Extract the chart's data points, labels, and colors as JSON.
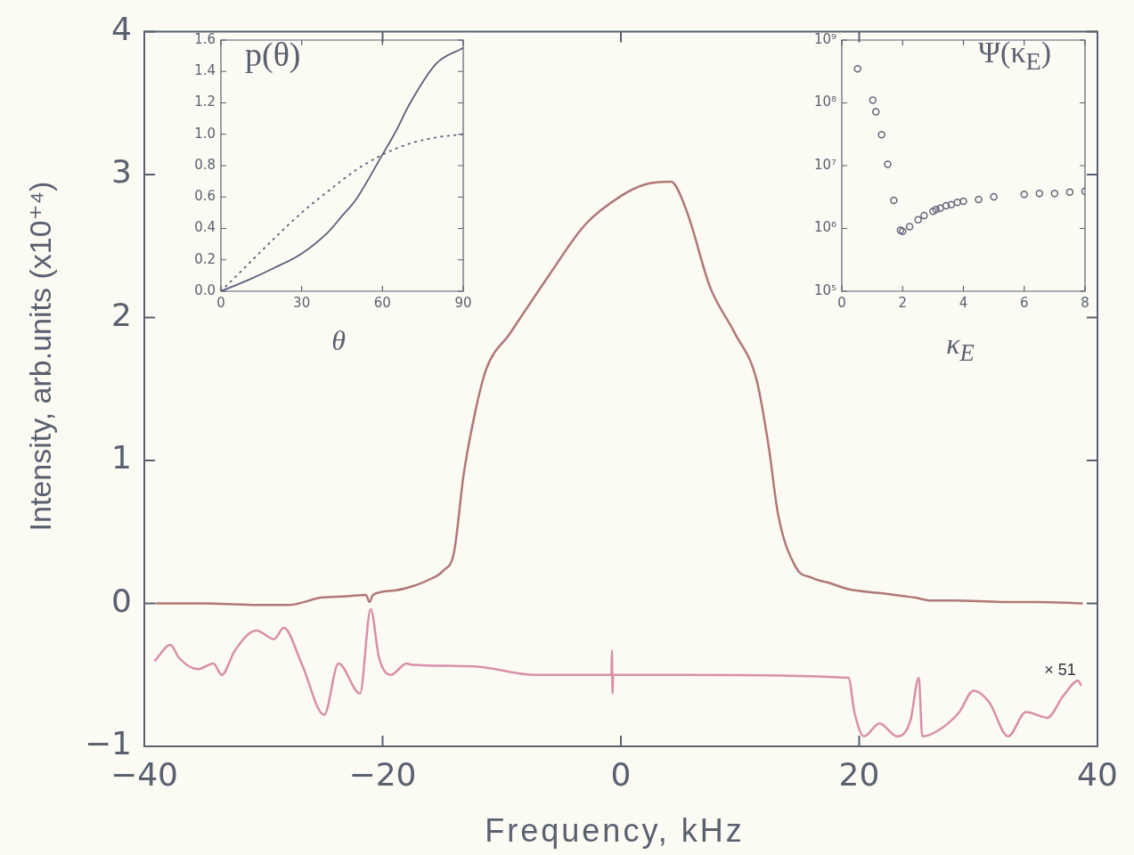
{
  "chart_data": [
    {
      "type": "line",
      "xlabel": "Frequency, kHz",
      "ylabel": "Intensity, arb.units   (x10⁺⁴)",
      "xlim": [
        -40,
        40
      ],
      "xticks": [
        {
          "value": -40,
          "label": "−40"
        },
        {
          "value": -20,
          "label": "−20"
        },
        0,
        20,
        40
      ],
      "ylim": [
        -1,
        4
      ],
      "yticks": [
        {
          "value": -1,
          "label": "−1"
        },
        0,
        1,
        2,
        3,
        4
      ],
      "series": [
        {
          "color": "#b07878",
          "x": [
            -39,
            -35,
            -31,
            -27.8,
            -25.2,
            -23,
            -21.4,
            -21.1,
            -20.8,
            -19,
            -17.5,
            -16,
            -14.9,
            -14,
            -13.2,
            -12.2,
            -11.3,
            -9.3,
            -6,
            -3,
            0,
            2,
            4.2,
            5.5,
            7.5,
            9.5,
            11.4,
            12.4,
            13.2,
            14.7,
            16,
            17.6,
            19.1,
            22,
            24.7,
            26,
            28,
            32,
            35,
            38.7
          ],
          "values": [
            0,
            0,
            -0.01,
            -0.01,
            0.04,
            0.05,
            0.06,
            0.01,
            0.06,
            0.09,
            0.12,
            0.17,
            0.23,
            0.36,
            0.9,
            1.35,
            1.64,
            1.89,
            2.3,
            2.65,
            2.85,
            2.93,
            2.95,
            2.75,
            2.21,
            1.9,
            1.56,
            1.1,
            0.62,
            0.25,
            0.18,
            0.14,
            0.1,
            0.07,
            0.04,
            0.02,
            0.02,
            0.01,
            0.01,
            0
          ]
        },
        {
          "color": "#d890a8",
          "x": [
            -39.1,
            -37.8,
            -37.1,
            -35.5,
            -34.2,
            -33.5,
            -32.4,
            -30.6,
            -29.1,
            -28.3,
            -26.8,
            -24.9,
            -23.7,
            -21.9,
            -21,
            -20.3,
            -19.3,
            -18,
            -17.5,
            -12.3,
            -7.2,
            -0.8,
            -0.75,
            -0.7,
            -0.65,
            5.2,
            19.1,
            19.6,
            20.4,
            21.7,
            23.2,
            24.3,
            25,
            25.3,
            26.8,
            28.4,
            29.6,
            30.9,
            32.5,
            34,
            35.8,
            37.1,
            38.4,
            38.6
          ],
          "values": [
            -0.4,
            -0.29,
            -0.38,
            -0.46,
            -0.42,
            -0.5,
            -0.33,
            -0.19,
            -0.25,
            -0.17,
            -0.42,
            -0.78,
            -0.42,
            -0.63,
            -0.04,
            -0.38,
            -0.5,
            -0.42,
            -0.43,
            -0.44,
            -0.5,
            -0.5,
            -0.33,
            -0.63,
            -0.5,
            -0.5,
            -0.52,
            -0.76,
            -0.93,
            -0.84,
            -0.93,
            -0.82,
            -0.52,
            -0.93,
            -0.88,
            -0.76,
            -0.61,
            -0.69,
            -0.93,
            -0.76,
            -0.8,
            -0.65,
            -0.54,
            -0.57
          ]
        }
      ],
      "annotations": [
        "× 51"
      ]
    },
    {
      "type": "line",
      "title": "p(θ)",
      "xlabel": "θ",
      "xlim": [
        0,
        90
      ],
      "xticks": [
        0,
        30,
        60,
        90
      ],
      "ylim": [
        0,
        1.6
      ],
      "yticks": [
        {
          "value": 0,
          "label": "0.0"
        },
        0.2,
        0.4,
        0.6,
        0.8,
        {
          "value": 1,
          "label": "1.0"
        },
        1.2,
        1.4,
        1.6
      ],
      "series": [
        {
          "color": "#5a6078",
          "line_style": "solid",
          "x": [
            0,
            10,
            20,
            30,
            40,
            45,
            50,
            60,
            65,
            70,
            80,
            90
          ],
          "values": [
            0,
            0.07,
            0.15,
            0.24,
            0.38,
            0.48,
            0.58,
            0.87,
            1.02,
            1.19,
            1.45,
            1.55
          ]
        },
        {
          "color": "#5a6078",
          "line_style": "dotted",
          "x": [
            0,
            10,
            20,
            30,
            40,
            50,
            60,
            70,
            80,
            90
          ],
          "values": [
            0,
            0.17,
            0.34,
            0.5,
            0.64,
            0.77,
            0.87,
            0.94,
            0.98,
            1
          ]
        }
      ]
    },
    {
      "type": "scatter",
      "title": "Ψ(κ$_{E}$)",
      "xlabel": "κ$_{E}$",
      "log": "y",
      "marker": "circle",
      "xlim": [
        0,
        8
      ],
      "xticks": [
        0,
        2,
        4,
        6,
        8
      ],
      "ylim": [
        100000,
        1000000000
      ],
      "yticks": [
        {
          "value": 100000,
          "label": "10⁵"
        },
        {
          "value": 1000000,
          "label": "10⁶"
        },
        {
          "value": 10000000,
          "label": "10⁷"
        },
        {
          "value": 100000000,
          "label": "10⁸"
        },
        {
          "value": 1000000000,
          "label": "10⁹"
        }
      ],
      "series": [
        {
          "color": "#66667e",
          "x": [
            0.52,
            1.02,
            1.12,
            1.31,
            1.51,
            1.71,
            1.93,
            2,
            2.23,
            2.51,
            2.71,
            3,
            3.1,
            3.24,
            3.43,
            3.6,
            3.8,
            4,
            4.5,
            5,
            6,
            6.5,
            7,
            7.5,
            8
          ],
          "values": [
            350000000,
            110000000,
            72000000,
            31000000,
            10500000,
            2800000,
            940000,
            900000,
            1070000,
            1370000,
            1600000,
            1870000,
            2000000,
            2100000,
            2300000,
            2400000,
            2600000,
            2700000,
            2900000,
            3200000,
            3500000,
            3600000,
            3600000,
            3800000,
            3900000
          ]
        }
      ]
    }
  ]
}
